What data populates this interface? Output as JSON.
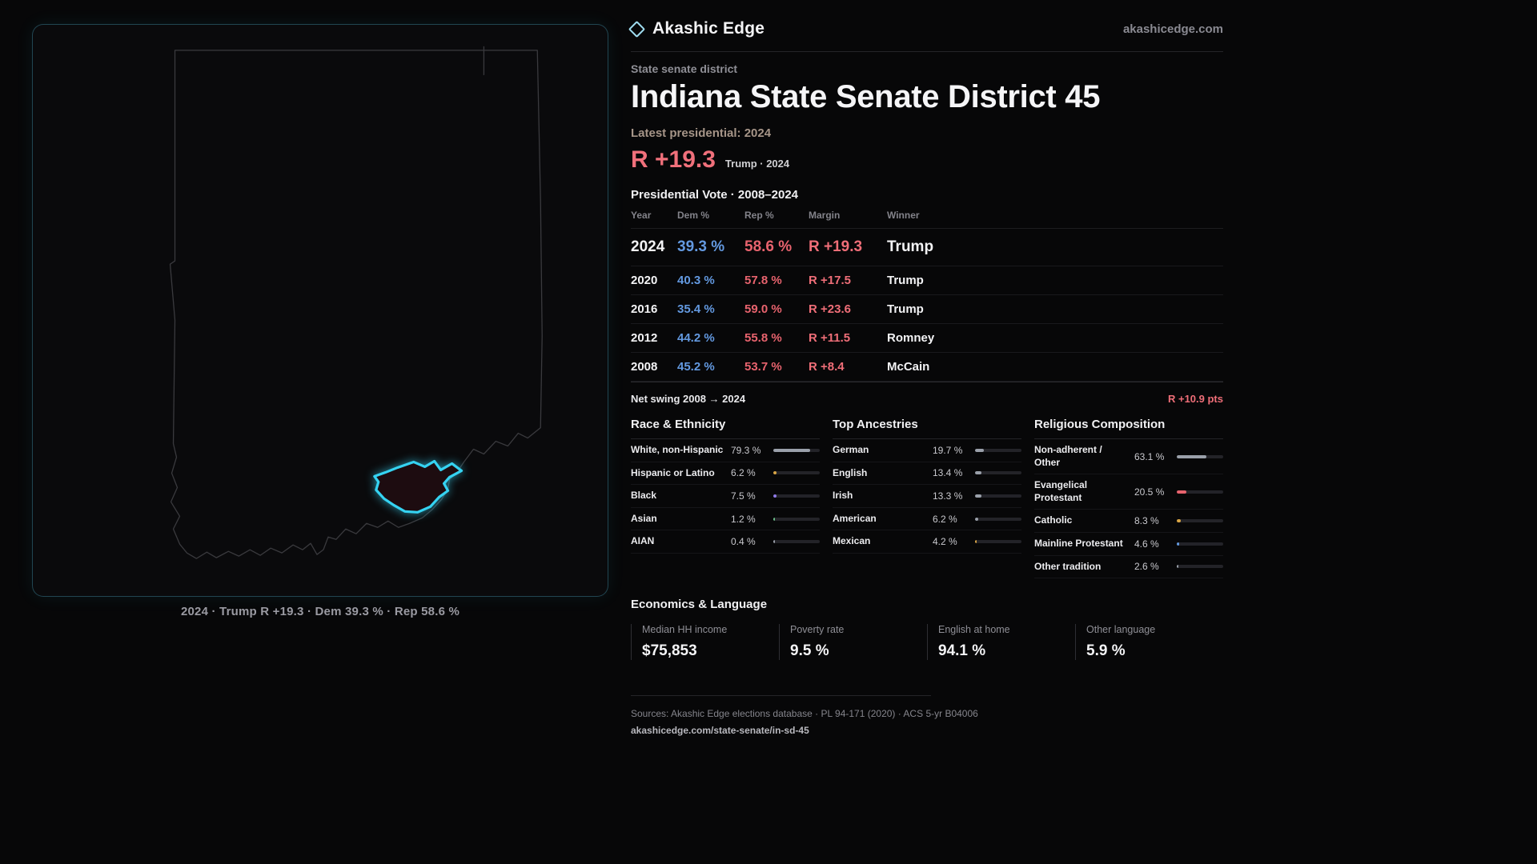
{
  "header": {
    "brand": "Akashic Edge",
    "site": "akashicedge.com"
  },
  "map": {
    "caption": "2024 · Trump R +19.3 · Dem 39.3 % · Rep 58.6 %"
  },
  "profile": {
    "kicker": "State senate district",
    "title": "Indiana State Senate District 45",
    "latest_label": "Latest presidential: 2024",
    "margin_big": "R +19.3",
    "margin_sub": "Trump · 2024",
    "table_title": "Presidential Vote · 2008–2024"
  },
  "vote": {
    "headers": [
      "Year",
      "Dem %",
      "Rep %",
      "Margin",
      "Winner"
    ],
    "rows": [
      {
        "year": "2024",
        "dem": "39.3 %",
        "rep": "58.6 %",
        "margin": "R +19.3",
        "winner": "Trump"
      },
      {
        "year": "2020",
        "dem": "40.3 %",
        "rep": "57.8 %",
        "margin": "R +17.5",
        "winner": "Trump"
      },
      {
        "year": "2016",
        "dem": "35.4 %",
        "rep": "59.0 %",
        "margin": "R +23.6",
        "winner": "Trump"
      },
      {
        "year": "2012",
        "dem": "44.2 %",
        "rep": "55.8 %",
        "margin": "R +11.5",
        "winner": "Romney"
      },
      {
        "year": "2008",
        "dem": "45.2 %",
        "rep": "53.7 %",
        "margin": "R +8.4",
        "winner": "McCain"
      }
    ]
  },
  "swing": {
    "label": "Net swing 2008 → 2024",
    "value": "R +10.9 pts"
  },
  "demographics": {
    "sections": [
      {
        "title": "Race & Ethnicity",
        "rows": [
          {
            "label": "White, non-Hispanic",
            "display": "79.3 %",
            "value": 79.3,
            "color": "#9aa0aa"
          },
          {
            "label": "Hispanic or Latino",
            "display": "6.2 %",
            "value": 6.2,
            "color": "#d9a544"
          },
          {
            "label": "Black",
            "display": "7.5 %",
            "value": 7.5,
            "color": "#8f7ae8"
          },
          {
            "label": "Asian",
            "display": "1.2 %",
            "value": 1.2,
            "color": "#6cc08a"
          },
          {
            "label": "AIAN",
            "display": "0.4 %",
            "value": 0.4,
            "color": "#9aa0aa"
          }
        ]
      },
      {
        "title": "Top Ancestries",
        "rows": [
          {
            "label": "German",
            "display": "19.7 %",
            "value": 19.7,
            "color": "#9aa0aa"
          },
          {
            "label": "English",
            "display": "13.4 %",
            "value": 13.4,
            "color": "#9aa0aa"
          },
          {
            "label": "Irish",
            "display": "13.3 %",
            "value": 13.3,
            "color": "#9aa0aa"
          },
          {
            "label": "American",
            "display": "6.2 %",
            "value": 6.2,
            "color": "#9aa0aa"
          },
          {
            "label": "Mexican",
            "display": "4.2 %",
            "value": 4.2,
            "color": "#d9a544"
          }
        ]
      },
      {
        "title": "Religious Composition",
        "rows": [
          {
            "label": "Non-adherent / Other",
            "display": "63.1 %",
            "value": 63.1,
            "color": "#9aa0aa"
          },
          {
            "label": "Evangelical Protestant",
            "display": "20.5 %",
            "value": 20.5,
            "color": "#e8636e"
          },
          {
            "label": "Catholic",
            "display": "8.3 %",
            "value": 8.3,
            "color": "#d9a544"
          },
          {
            "label": "Mainline Protestant",
            "display": "4.6 %",
            "value": 4.6,
            "color": "#6399e0"
          },
          {
            "label": "Other tradition",
            "display": "2.6 %",
            "value": 2.6,
            "color": "#9aa0aa"
          }
        ]
      }
    ]
  },
  "economics": {
    "title": "Economics & Language",
    "stats": [
      {
        "label": "Median HH income",
        "value": "$75,853"
      },
      {
        "label": "Poverty rate",
        "value": "9.5 %"
      },
      {
        "label": "English at home",
        "value": "94.1 %"
      },
      {
        "label": "Other language",
        "value": "5.9 %"
      }
    ]
  },
  "footer": {
    "sources": "Sources: Akashic Edge elections database · PL 94-171 (2020) · ACS 5-yr B04006",
    "permalink": "akashicedge.com/state-senate/in-sd-45"
  },
  "chart_data": [
    {
      "type": "table",
      "title": "Presidential Vote · 2008–2024",
      "columns": [
        "Year",
        "Dem %",
        "Rep %",
        "Margin",
        "Winner"
      ],
      "rows": [
        [
          2024,
          39.3,
          58.6,
          "R +19.3",
          "Trump"
        ],
        [
          2020,
          40.3,
          57.8,
          "R +17.5",
          "Trump"
        ],
        [
          2016,
          35.4,
          59.0,
          "R +23.6",
          "Trump"
        ],
        [
          2012,
          44.2,
          55.8,
          "R +11.5",
          "Romney"
        ],
        [
          2008,
          45.2,
          53.7,
          "R +8.4",
          "McCain"
        ]
      ],
      "net_swing_2008_2024": "R +10.9 pts"
    },
    {
      "type": "bar",
      "title": "Race & Ethnicity",
      "categories": [
        "White, non-Hispanic",
        "Hispanic or Latino",
        "Black",
        "Asian",
        "AIAN"
      ],
      "values": [
        79.3,
        6.2,
        7.5,
        1.2,
        0.4
      ],
      "xlabel": "",
      "ylabel": "%",
      "xlim": [
        0,
        100
      ]
    },
    {
      "type": "bar",
      "title": "Top Ancestries",
      "categories": [
        "German",
        "English",
        "Irish",
        "American",
        "Mexican"
      ],
      "values": [
        19.7,
        13.4,
        13.3,
        6.2,
        4.2
      ],
      "xlabel": "",
      "ylabel": "%",
      "xlim": [
        0,
        100
      ]
    },
    {
      "type": "bar",
      "title": "Religious Composition",
      "categories": [
        "Non-adherent / Other",
        "Evangelical Protestant",
        "Catholic",
        "Mainline Protestant",
        "Other tradition"
      ],
      "values": [
        63.1,
        20.5,
        8.3,
        4.6,
        2.6
      ],
      "xlabel": "",
      "ylabel": "%",
      "xlim": [
        0,
        100
      ]
    },
    {
      "type": "table",
      "title": "Economics & Language",
      "columns": [
        "Median HH income",
        "Poverty rate",
        "English at home",
        "Other language"
      ],
      "rows": [
        [
          "$75,853",
          "9.5 %",
          "94.1 %",
          "5.9 %"
        ]
      ]
    }
  ]
}
